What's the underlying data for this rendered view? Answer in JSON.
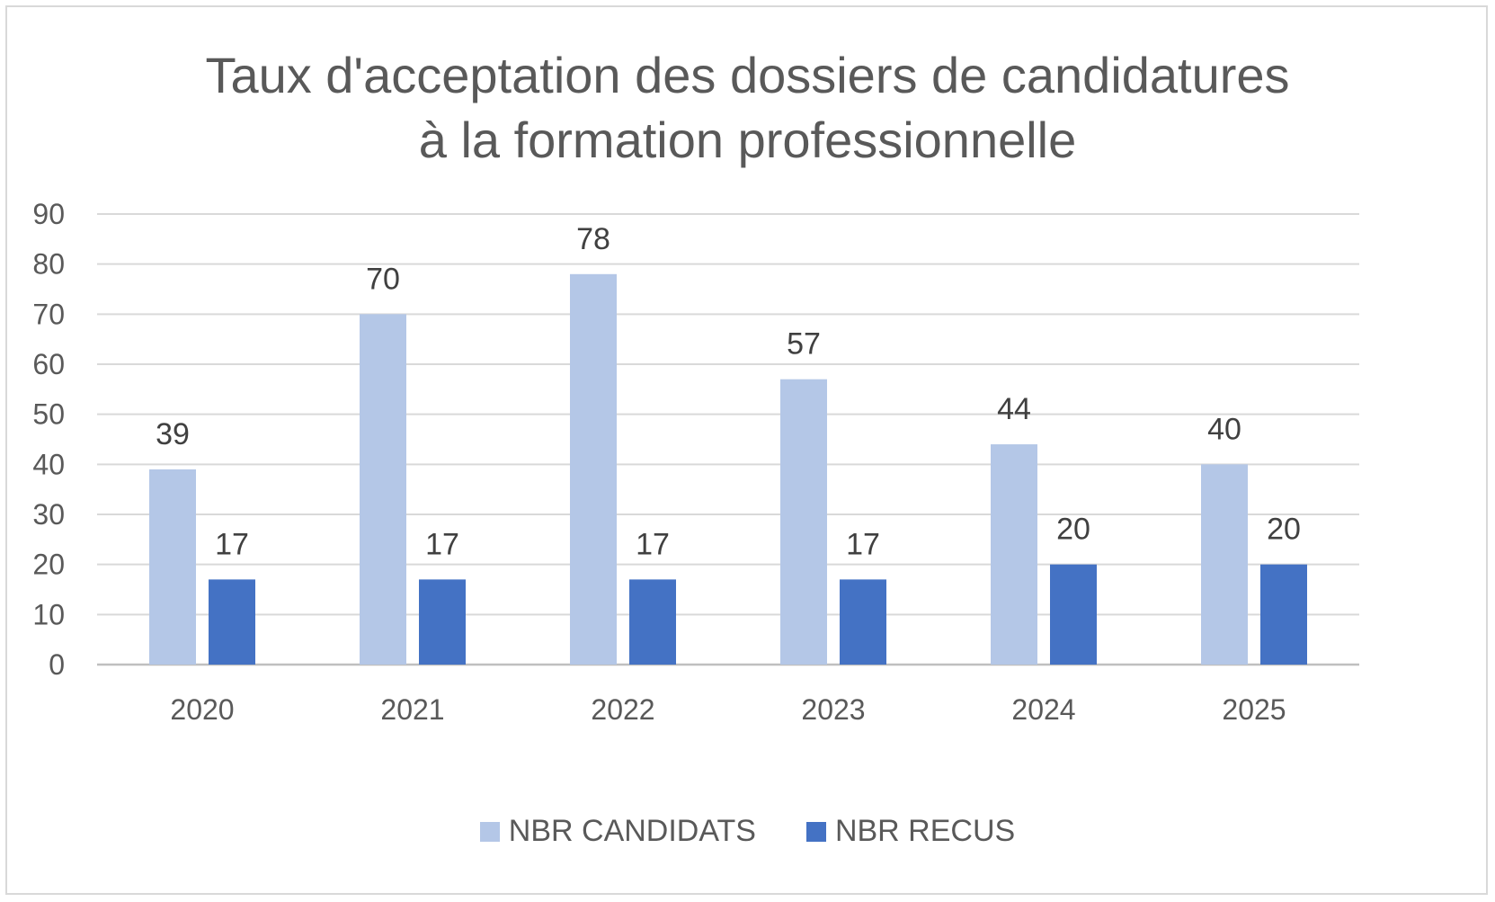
{
  "chart_data": {
    "type": "bar",
    "title_lines": [
      "Taux d'acceptation des dossiers de candidatures",
      "à la formation professionnelle"
    ],
    "categories": [
      "2020",
      "2021",
      "2022",
      "2023",
      "2024",
      "2025"
    ],
    "series": [
      {
        "name": "NBR CANDIDATS",
        "color": "#b4c7e7",
        "values": [
          39,
          70,
          78,
          57,
          44,
          40
        ]
      },
      {
        "name": "NBR RECUS",
        "color": "#4472c4",
        "values": [
          17,
          17,
          17,
          17,
          20,
          20
        ]
      }
    ],
    "ylim": [
      0,
      90
    ],
    "yticks": [
      "0",
      "10",
      "20",
      "30",
      "40",
      "50",
      "60",
      "70",
      "80",
      "90"
    ],
    "grid": true,
    "legend_position": "bottom",
    "xlabel": "",
    "ylabel": ""
  }
}
